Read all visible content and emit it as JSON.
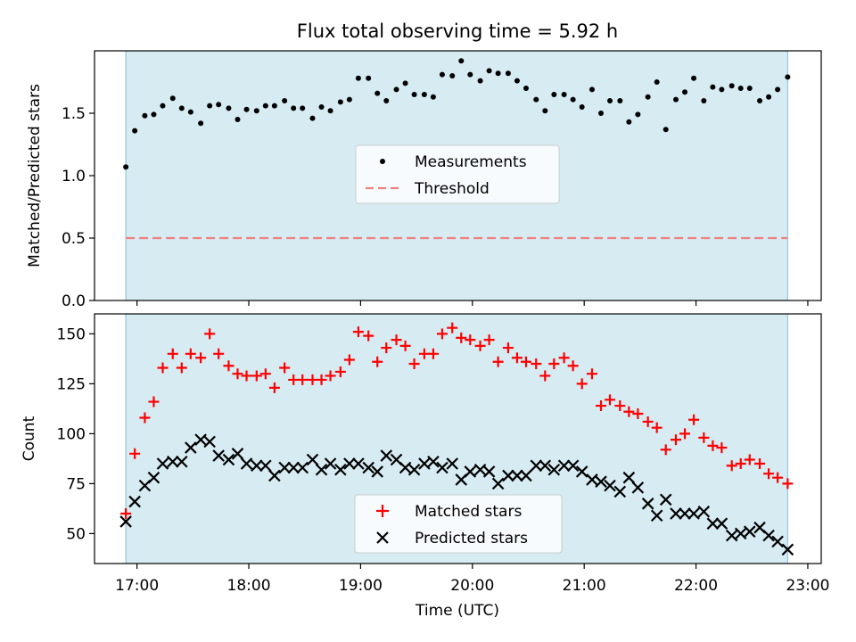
{
  "figure_title": "Flux total observing time = 5.92 h",
  "chart_data": [
    {
      "type": "scatter",
      "panel": "top",
      "ylabel": "Matched/Predicted stars",
      "xlabel": "",
      "x_range_hours": [
        16.62,
        23.12
      ],
      "ylim": [
        0,
        2.0
      ],
      "yticks": [
        0.0,
        0.5,
        1.0,
        1.5
      ],
      "ytick_labels": [
        "0.0",
        "0.5",
        "1.0",
        "1.5"
      ],
      "shaded_span_hours": [
        16.9,
        22.82
      ],
      "shade_color": "#add8e6",
      "legend": {
        "placement": "center",
        "entries": [
          "Measurements",
          "Threshold"
        ]
      },
      "threshold": {
        "name": "Threshold",
        "value": 0.5,
        "color": "#f08080"
      },
      "series": [
        {
          "name": "Measurements",
          "color": "#000000",
          "x_hours": [
            16.9,
            16.98,
            17.07,
            17.15,
            17.23,
            17.32,
            17.4,
            17.48,
            17.57,
            17.65,
            17.73,
            17.82,
            17.9,
            17.98,
            18.07,
            18.15,
            18.23,
            18.32,
            18.4,
            18.48,
            18.57,
            18.65,
            18.73,
            18.82,
            18.9,
            18.98,
            19.07,
            19.15,
            19.23,
            19.32,
            19.4,
            19.48,
            19.57,
            19.65,
            19.73,
            19.82,
            19.9,
            19.98,
            20.07,
            20.15,
            20.23,
            20.32,
            20.4,
            20.48,
            20.57,
            20.65,
            20.73,
            20.82,
            20.9,
            20.98,
            21.07,
            21.15,
            21.23,
            21.32,
            21.4,
            21.48,
            21.57,
            21.65,
            21.73,
            21.82,
            21.9,
            21.98,
            22.07,
            22.15,
            22.23,
            22.32,
            22.4,
            22.48,
            22.57,
            22.65,
            22.73,
            22.82
          ],
          "y": [
            1.07,
            1.36,
            1.48,
            1.49,
            1.56,
            1.62,
            1.54,
            1.51,
            1.42,
            1.56,
            1.57,
            1.54,
            1.45,
            1.53,
            1.52,
            1.56,
            1.56,
            1.6,
            1.54,
            1.54,
            1.46,
            1.55,
            1.52,
            1.59,
            1.61,
            1.78,
            1.78,
            1.66,
            1.6,
            1.69,
            1.74,
            1.65,
            1.65,
            1.63,
            1.81,
            1.8,
            1.92,
            1.81,
            1.76,
            1.84,
            1.82,
            1.82,
            1.76,
            1.7,
            1.61,
            1.52,
            1.65,
            1.65,
            1.61,
            1.55,
            1.69,
            1.5,
            1.6,
            1.6,
            1.43,
            1.49,
            1.63,
            1.75,
            1.37,
            1.61,
            1.67,
            1.78,
            1.6,
            1.71,
            1.69,
            1.72,
            1.7,
            1.7,
            1.6,
            1.63,
            1.69,
            1.79
          ]
        }
      ]
    },
    {
      "type": "scatter",
      "panel": "bottom",
      "ylabel": "Count",
      "xlabel": "Time (UTC)",
      "x_range_hours": [
        16.62,
        23.12
      ],
      "ylim": [
        35,
        160
      ],
      "yticks": [
        50,
        75,
        100,
        125,
        150
      ],
      "ytick_labels": [
        "50",
        "75",
        "100",
        "125",
        "150"
      ],
      "xticks_hours": [
        17,
        18,
        19,
        20,
        21,
        22,
        23
      ],
      "xtick_labels": [
        "17:00",
        "18:00",
        "19:00",
        "20:00",
        "21:00",
        "22:00",
        "23:00"
      ],
      "shaded_span_hours": [
        16.9,
        22.82
      ],
      "shade_color": "#add8e6",
      "legend": {
        "placement": "lower center",
        "entries": [
          "Matched stars",
          "Predicted stars"
        ]
      },
      "series": [
        {
          "name": "Matched stars",
          "marker": "plus",
          "color": "#ff0000",
          "x_hours": [
            16.9,
            16.98,
            17.07,
            17.15,
            17.23,
            17.32,
            17.4,
            17.48,
            17.57,
            17.65,
            17.73,
            17.82,
            17.9,
            17.98,
            18.07,
            18.15,
            18.23,
            18.32,
            18.4,
            18.48,
            18.57,
            18.65,
            18.73,
            18.82,
            18.9,
            18.98,
            19.07,
            19.15,
            19.23,
            19.32,
            19.4,
            19.48,
            19.57,
            19.65,
            19.73,
            19.82,
            19.9,
            19.98,
            20.07,
            20.15,
            20.23,
            20.32,
            20.4,
            20.48,
            20.57,
            20.65,
            20.73,
            20.82,
            20.9,
            20.98,
            21.07,
            21.15,
            21.23,
            21.32,
            21.4,
            21.48,
            21.57,
            21.65,
            21.73,
            21.82,
            21.9,
            21.98,
            22.07,
            22.15,
            22.23,
            22.32,
            22.4,
            22.48,
            22.57,
            22.65,
            22.73,
            22.82
          ],
          "y": [
            60,
            90,
            108,
            116,
            133,
            140,
            133,
            140,
            138,
            150,
            140,
            134,
            130,
            129,
            129,
            130,
            123,
            133,
            127,
            127,
            127,
            127,
            129,
            131,
            137,
            151,
            149,
            136,
            143,
            147,
            144,
            135,
            140,
            140,
            150,
            153,
            148,
            147,
            144,
            147,
            136,
            143,
            138,
            136,
            135,
            129,
            135,
            138,
            134,
            125,
            130,
            114,
            117,
            114,
            111,
            110,
            106,
            103,
            92,
            97,
            100,
            107,
            98,
            94,
            93,
            84,
            85,
            87,
            85,
            80,
            78,
            75
          ]
        },
        {
          "name": "Predicted stars",
          "marker": "x",
          "color": "#000000",
          "x_hours": [
            16.9,
            16.98,
            17.07,
            17.15,
            17.23,
            17.32,
            17.4,
            17.48,
            17.57,
            17.65,
            17.73,
            17.82,
            17.9,
            17.98,
            18.07,
            18.15,
            18.23,
            18.32,
            18.4,
            18.48,
            18.57,
            18.65,
            18.73,
            18.82,
            18.9,
            18.98,
            19.07,
            19.15,
            19.23,
            19.32,
            19.4,
            19.48,
            19.57,
            19.65,
            19.73,
            19.82,
            19.9,
            19.98,
            20.07,
            20.15,
            20.23,
            20.32,
            20.4,
            20.48,
            20.57,
            20.65,
            20.73,
            20.82,
            20.9,
            20.98,
            21.07,
            21.15,
            21.23,
            21.32,
            21.4,
            21.48,
            21.57,
            21.65,
            21.73,
            21.82,
            21.9,
            21.98,
            22.07,
            22.15,
            22.23,
            22.32,
            22.4,
            22.48,
            22.57,
            22.65,
            22.73,
            22.82
          ],
          "y": [
            56,
            66,
            74,
            78,
            85,
            86,
            86,
            93,
            97,
            96,
            89,
            87,
            90,
            85,
            84,
            84,
            79,
            83,
            83,
            83,
            87,
            82,
            85,
            82,
            85,
            85,
            83,
            81,
            89,
            87,
            83,
            82,
            85,
            86,
            83,
            85,
            77,
            81,
            82,
            81,
            75,
            79,
            79,
            79,
            84,
            84,
            82,
            84,
            84,
            81,
            77,
            76,
            74,
            71,
            78,
            73,
            65,
            59,
            67,
            60,
            60,
            60,
            61,
            55,
            55,
            49,
            50,
            51,
            53,
            49,
            46,
            42
          ]
        }
      ]
    }
  ]
}
